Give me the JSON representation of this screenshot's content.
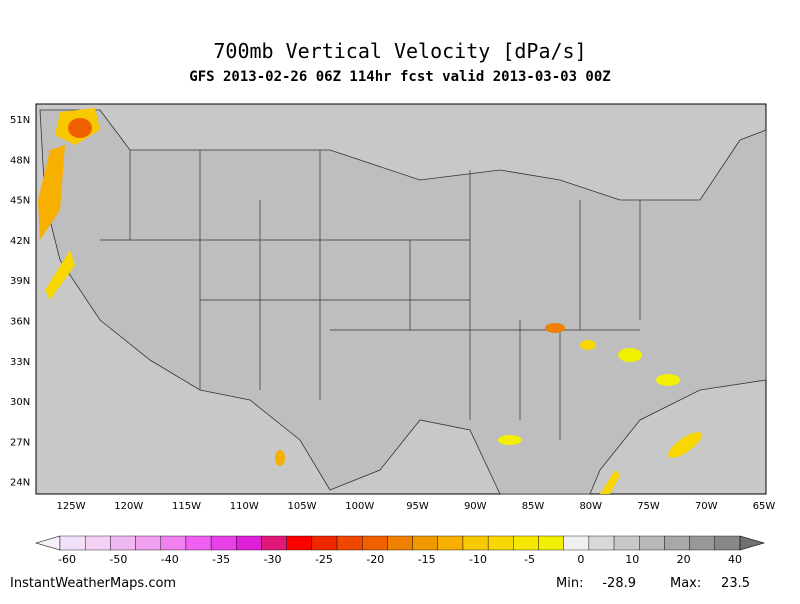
{
  "header": {
    "title": "700mb Vertical Velocity [dPa/s]",
    "subtitle": "GFS 2013-02-26 06Z 114hr fcst valid 2013-03-03 00Z"
  },
  "map": {
    "lat_labels": [
      "51N",
      "48N",
      "45N",
      "42N",
      "39N",
      "36N",
      "33N",
      "30N",
      "27N",
      "24N"
    ],
    "lon_labels": [
      "125W",
      "120W",
      "115W",
      "110W",
      "105W",
      "100W",
      "95W",
      "90W",
      "85W",
      "80W",
      "75W",
      "70W",
      "65W"
    ]
  },
  "colorbar": {
    "ticks": [
      -60,
      -50,
      -40,
      -35,
      -30,
      -25,
      -20,
      -15,
      -10,
      -5,
      0,
      10,
      20,
      40
    ],
    "colors": [
      "#f0e0f8",
      "#f4d0f4",
      "#f0b8f0",
      "#f0a0f0",
      "#f080f0",
      "#f060f0",
      "#e840e8",
      "#e020d8",
      "#e01878",
      "#ff0000",
      "#f02800",
      "#f04800",
      "#f06000",
      "#f08000",
      "#f09800",
      "#f8b000",
      "#f8c800",
      "#f8d800",
      "#f8e800",
      "#f0f000",
      "#f0f0f0",
      "#d8d8d8",
      "#c8c8c8",
      "#b8b8b8",
      "#a8a8a8",
      "#989898",
      "#888888"
    ]
  },
  "footer": {
    "site": "InstantWeatherMaps.com",
    "min_label": "Min:",
    "min": -28.9,
    "max_label": "Max:",
    "max": 23.5
  }
}
